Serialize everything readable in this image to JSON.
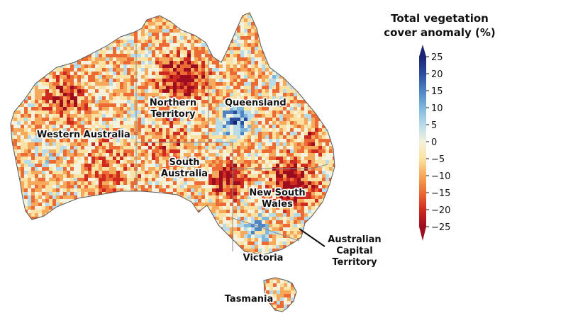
{
  "legend": {
    "title_line1": "Total vegetation",
    "title_line2": "cover anomaly (%)",
    "min": -25,
    "max": 25,
    "ticks": [
      "25",
      "20",
      "15",
      "10",
      "5",
      "0",
      "−5",
      "−10",
      "−15",
      "−20",
      "−25"
    ],
    "colors": [
      "#9b0d1f",
      "#cf2a1f",
      "#ec6a34",
      "#f6a95a",
      "#fbe2a2",
      "#f4f1dc",
      "#b8dbe9",
      "#7fb6dc",
      "#4e84c3",
      "#2a4d9c",
      "#1a2472"
    ]
  },
  "regions": {
    "western_australia": "Western Australia",
    "northern_territory_line1": "Northern",
    "northern_territory_line2": "Territory",
    "queensland": "Queensland",
    "south_australia_line1": "South",
    "south_australia_line2": "Australia",
    "new_south_wales_line1": "New South",
    "new_south_wales_line2": "Wales",
    "victoria": "Victoria",
    "tasmania": "Tasmania",
    "act_line1": "Australian",
    "act_line2": "Capital",
    "act_line3": "Territory"
  }
}
